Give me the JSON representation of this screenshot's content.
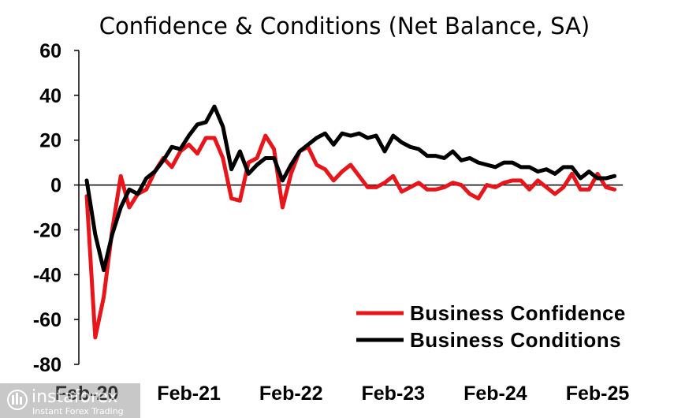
{
  "chart_data": {
    "type": "line",
    "title": "Confidence & Conditions (Net Balance, SA)",
    "xlabel": "",
    "ylabel": "",
    "ylim": [
      -80,
      60
    ],
    "yticks": [
      60,
      40,
      20,
      0,
      -20,
      -40,
      -60,
      -80
    ],
    "xticks": [
      {
        "label": "Feb-20",
        "month": 0
      },
      {
        "label": "Feb-21",
        "month": 12
      },
      {
        "label": "Feb-22",
        "month": 24
      },
      {
        "label": "Feb-23",
        "month": 36
      },
      {
        "label": "Feb-24",
        "month": 48
      },
      {
        "label": "Feb-25",
        "month": 60
      }
    ],
    "grid": false,
    "legend_position": "bottom-right",
    "series": [
      {
        "name": "Business Confidence",
        "color": "#e8151b",
        "x": [
          0,
          1,
          2,
          3,
          4,
          5,
          6,
          7,
          8,
          9,
          10,
          11,
          12,
          13,
          14,
          15,
          16,
          17,
          18,
          19,
          20,
          21,
          22,
          23,
          24,
          25,
          26,
          27,
          28,
          29,
          30,
          31,
          32,
          33,
          34,
          35,
          36,
          37,
          38,
          39,
          40,
          41,
          42,
          43,
          44,
          45,
          46,
          47,
          48,
          49,
          50,
          51,
          52,
          53,
          54,
          55,
          56,
          57,
          58,
          59,
          60,
          61,
          62
        ],
        "values": [
          -5,
          -68,
          -50,
          -20,
          4,
          -10,
          -4,
          -2,
          6,
          12,
          8,
          15,
          18,
          14,
          21,
          21,
          12,
          -6,
          -7,
          10,
          12,
          22,
          16,
          -10,
          5,
          15,
          17,
          9,
          7,
          2,
          6,
          9,
          4,
          -1,
          -1,
          1,
          4,
          -3,
          -1,
          1,
          -2,
          -2,
          -1,
          1,
          0,
          -4,
          -6,
          0,
          -1,
          1,
          2,
          2,
          -2,
          2,
          -1,
          -4,
          -1,
          5,
          -2,
          -2,
          5,
          -1,
          -2
        ]
      },
      {
        "name": "Business Conditions",
        "color": "#000000",
        "x": [
          0,
          1,
          2,
          3,
          4,
          5,
          6,
          7,
          8,
          9,
          10,
          11,
          12,
          13,
          14,
          15,
          16,
          17,
          18,
          19,
          20,
          21,
          22,
          23,
          24,
          25,
          26,
          27,
          28,
          29,
          30,
          31,
          32,
          33,
          34,
          35,
          36,
          37,
          38,
          39,
          40,
          41,
          42,
          43,
          44,
          45,
          46,
          47,
          48,
          49,
          50,
          51,
          52,
          53,
          54,
          55,
          56,
          57,
          58,
          59,
          60,
          61,
          62
        ],
        "values": [
          2,
          -22,
          -38,
          -22,
          -10,
          -2,
          -4,
          3,
          6,
          11,
          17,
          16,
          22,
          27,
          28,
          35,
          26,
          7,
          15,
          5,
          9,
          12,
          12,
          2,
          9,
          15,
          18,
          21,
          23,
          18,
          23,
          22,
          23,
          21,
          22,
          15,
          22,
          19,
          17,
          16,
          13,
          13,
          12,
          15,
          11,
          12,
          10,
          9,
          8,
          10,
          10,
          8,
          8,
          6,
          7,
          5,
          8,
          8,
          3,
          6,
          3,
          3,
          4
        ]
      }
    ]
  }
}
